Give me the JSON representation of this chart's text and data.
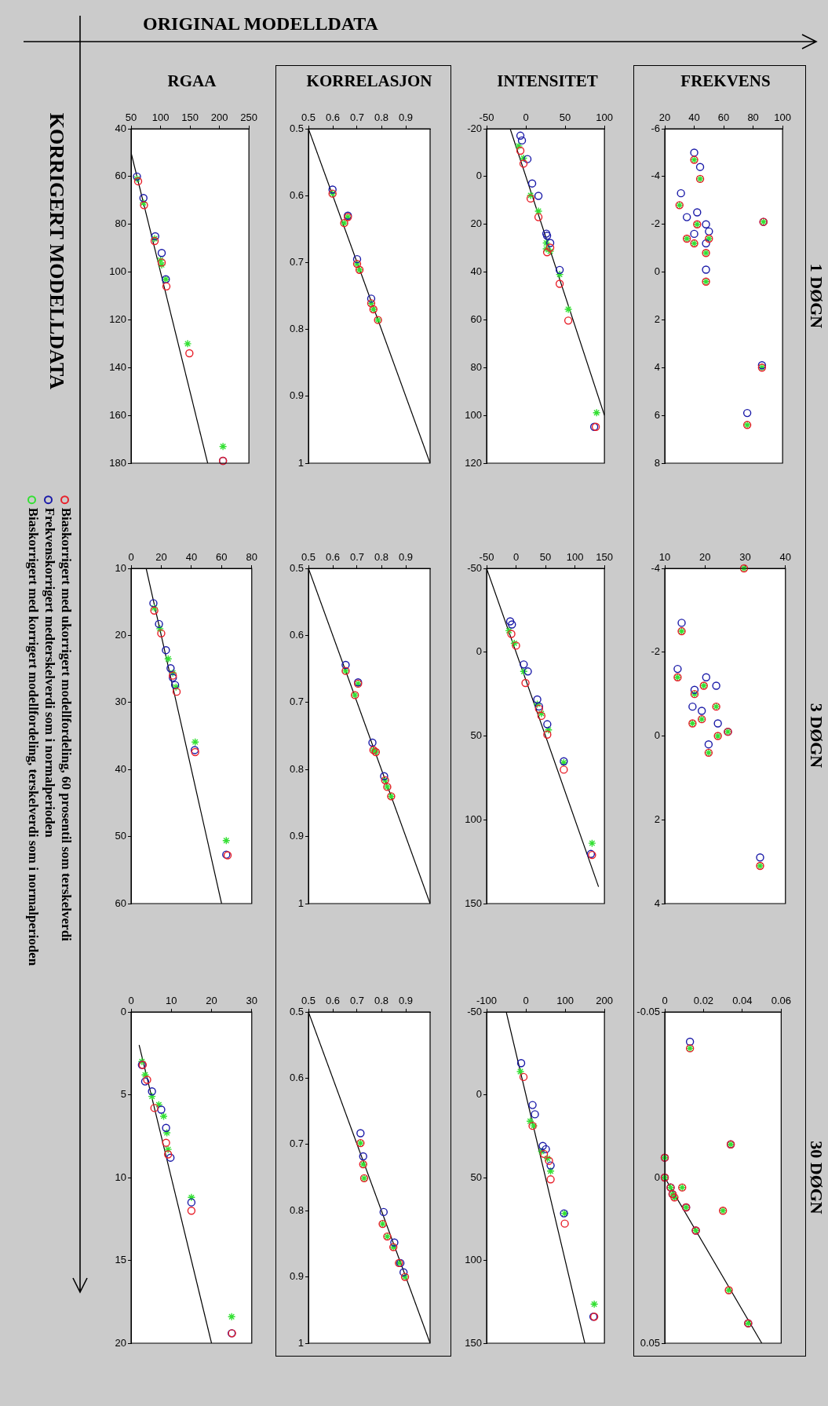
{
  "chart_data": [
    {
      "type": "scatter",
      "xlabel": "RGAA",
      "annotations": [
        "ORIGINAL MODELLDATA",
        "KORRIGERT MODELLDATA"
      ],
      "xlim": [
        50,
        250
      ],
      "ylim": [
        180,
        40
      ],
      "xticks": [
        50,
        100,
        150,
        200,
        250
      ],
      "yticks": [
        40,
        60,
        80,
        100,
        120,
        140,
        160,
        180
      ],
      "series": [
        {
          "color": "#e8202a",
          "marker": "circle",
          "x": [
            62,
            72,
            90,
            102,
            110,
            149,
            206
          ],
          "values": [
            62,
            72,
            87,
            96,
            106,
            134,
            179
          ]
        },
        {
          "color": "#1a1aa8",
          "marker": "circle",
          "x": [
            60,
            71,
            91,
            102,
            109,
            206
          ],
          "values": [
            60,
            69,
            85,
            92,
            103,
            179
          ]
        },
        {
          "color": "#33e033",
          "marker": "cross",
          "x": [
            60,
            71,
            90,
            100,
            102,
            109,
            146,
            206
          ],
          "values": [
            61,
            71,
            86,
            95,
            97,
            103,
            130,
            173
          ]
        },
        {
          "type": "line",
          "color": "#000000",
          "marker": "none",
          "x": [
            50,
            180
          ],
          "values": [
            50,
            180
          ]
        }
      ]
    },
    {
      "type": "scatter",
      "xlabel": "KORRELASJON",
      "xlim": [
        0.5,
        1
      ],
      "ylim": [
        1,
        0.5
      ],
      "xticks": [
        0.5,
        0.6,
        0.7,
        0.8,
        0.9
      ],
      "yticks": [
        0.5,
        0.6,
        0.7,
        0.8,
        0.9,
        1
      ],
      "series": [
        {
          "color": "#e8202a",
          "marker": "circle",
          "x": [
            0.599,
            0.662,
            0.647,
            0.7,
            0.71,
            0.758,
            0.767,
            0.786
          ],
          "values": [
            0.597,
            0.632,
            0.641,
            0.702,
            0.711,
            0.761,
            0.77,
            0.786
          ]
        },
        {
          "color": "#1a1aa8",
          "marker": "circle",
          "x": [
            0.599,
            0.662,
            0.7,
            0.758
          ],
          "values": [
            0.591,
            0.63,
            0.695,
            0.754
          ]
        },
        {
          "color": "#33e033",
          "marker": "cross",
          "x": [
            0.599,
            0.662,
            0.647,
            0.7,
            0.71,
            0.758,
            0.767,
            0.786
          ],
          "values": [
            0.597,
            0.632,
            0.641,
            0.702,
            0.711,
            0.761,
            0.77,
            0.786
          ]
        },
        {
          "type": "line",
          "color": "#000000",
          "marker": "none",
          "x": [
            0.5,
            1
          ],
          "values": [
            0.5,
            1
          ]
        }
      ]
    },
    {
      "type": "scatter",
      "xlabel": "INTENSITET",
      "xlim": [
        -50,
        100
      ],
      "ylim": [
        120,
        -20
      ],
      "xticks": [
        -50,
        0,
        50,
        100
      ],
      "yticks": [
        -20,
        0,
        20,
        40,
        60,
        80,
        100,
        120
      ],
      "series": [
        {
          "color": "#e8202a",
          "marker": "circle",
          "x": [
            -7,
            -3,
            6,
            16,
            31,
            27,
            43,
            54,
            89
          ],
          "values": [
            -10.8,
            -5.4,
            9.2,
            17.0,
            29.8,
            31.7,
            44.9,
            60.3,
            104.8
          ]
        },
        {
          "color": "#1a1aa8",
          "marker": "circle",
          "x": [
            -7,
            -5,
            2,
            8,
            16,
            26,
            27,
            31,
            43,
            87
          ],
          "values": [
            -17.1,
            -15.1,
            -7.3,
            2.9,
            8.1,
            23.9,
            24.8,
            27.8,
            39.1,
            104.8
          ]
        },
        {
          "color": "#33e033",
          "marker": "cross",
          "x": [
            -9,
            -3,
            6,
            16,
            26,
            26,
            31,
            43,
            54,
            90
          ],
          "values": [
            -12.8,
            -7.7,
            7.9,
            14.5,
            27.8,
            30.3,
            31.3,
            41.0,
            55.6,
            98.9
          ]
        },
        {
          "type": "line",
          "color": "#000000",
          "marker": "none",
          "x": [
            -20,
            100
          ],
          "values": [
            -20,
            100
          ]
        }
      ]
    },
    {
      "type": "scatter",
      "annotations": [
        "1 DØGN"
      ],
      "xlabel": "FREKVENS",
      "xlim": [
        20,
        100
      ],
      "ylim": [
        8,
        -6
      ],
      "xticks": [
        20,
        40,
        60,
        80,
        100
      ],
      "yticks": [
        -6,
        -4,
        -2,
        0,
        2,
        4,
        6,
        8
      ],
      "series": [
        {
          "color": "#e8202a",
          "marker": "circle",
          "x": [
            40,
            44,
            30,
            42,
            35,
            40,
            50,
            48,
            48,
            87,
            86,
            76
          ],
          "values": [
            -4.7,
            -3.9,
            -2.8,
            -2.0,
            -1.4,
            -1.2,
            -1.4,
            -0.8,
            0.4,
            -2.1,
            4.0,
            6.4
          ]
        },
        {
          "color": "#1a1aa8",
          "marker": "circle",
          "x": [
            40,
            44,
            31,
            42,
            48,
            35,
            40,
            50,
            48,
            48,
            87,
            86,
            76
          ],
          "values": [
            -5.0,
            -4.4,
            -3.3,
            -2.5,
            -2.0,
            -2.3,
            -1.6,
            -1.7,
            -1.2,
            -0.1,
            -2.1,
            3.9,
            5.9
          ]
        },
        {
          "color": "#33e033",
          "marker": "cross",
          "x": [
            40,
            44,
            30,
            42,
            35,
            40,
            50,
            48,
            48,
            87,
            86,
            76
          ],
          "values": [
            -4.7,
            -3.9,
            -2.8,
            -2.0,
            -1.4,
            -1.2,
            -1.4,
            -0.8,
            0.4,
            -2.1,
            4.0,
            6.4
          ]
        }
      ]
    },
    {
      "type": "scatter",
      "legend": "left",
      "xlim": [
        0,
        80
      ],
      "ylim": [
        60,
        10
      ],
      "xticks": [
        0,
        20,
        40,
        60,
        80
      ],
      "yticks": [
        10,
        20,
        30,
        40,
        50,
        60
      ],
      "series": [
        {
          "name": "Biaskorrigert med ukorrigert modellfordeling, 60 prosentil som terskelverdi",
          "color": "#e8202a",
          "marker": "circle",
          "x": [
            15.4,
            20.0,
            27.7,
            30.2,
            42.5,
            64.0
          ],
          "values": [
            16.3,
            19.7,
            26.0,
            28.4,
            37.4,
            52.8
          ]
        },
        {
          "name": "Frekvenskorrigert medterskelverdi som i normalperioden",
          "color": "#1a1aa8",
          "marker": "circle",
          "x": [
            14.8,
            18.5,
            23.1,
            26.2,
            27.7,
            29.2,
            42.2,
            63.1
          ],
          "values": [
            15.2,
            18.3,
            22.2,
            24.9,
            26.3,
            27.4,
            37.1,
            52.7
          ]
        },
        {
          "name": "Biaskorrigert med korrigert modellfordeling, terskelverdi som i normalperioden",
          "color": "#33e033",
          "marker": "cross",
          "x": [
            15.4,
            19.1,
            24.6,
            27.7,
            29.8,
            42.5,
            63.1
          ],
          "values": [
            15.9,
            19.0,
            23.5,
            25.6,
            27.7,
            35.9,
            50.6
          ]
        },
        {
          "type": "line",
          "color": "#000000",
          "marker": "none",
          "x": [
            10,
            60
          ],
          "values": [
            10,
            60
          ]
        }
      ]
    },
    {
      "type": "scatter",
      "xlim": [
        0.5,
        1
      ],
      "ylim": [
        1,
        0.5
      ],
      "xticks": [
        0.5,
        0.6,
        0.7,
        0.8,
        0.9
      ],
      "yticks": [
        0.5,
        0.6,
        0.7,
        0.8,
        0.9,
        1
      ],
      "series": [
        {
          "color": "#e8202a",
          "marker": "circle",
          "x": [
            0.653,
            0.704,
            0.691,
            0.767,
            0.777,
            0.815,
            0.824,
            0.84
          ],
          "values": [
            0.653,
            0.672,
            0.689,
            0.771,
            0.774,
            0.816,
            0.826,
            0.84
          ]
        },
        {
          "color": "#1a1aa8",
          "marker": "circle",
          "x": [
            0.653,
            0.704,
            0.763,
            0.811
          ],
          "values": [
            0.644,
            0.67,
            0.76,
            0.81
          ]
        },
        {
          "color": "#33e033",
          "marker": "cross",
          "x": [
            0.653,
            0.704,
            0.691,
            0.767,
            0.777,
            0.815,
            0.824,
            0.84
          ],
          "values": [
            0.653,
            0.672,
            0.689,
            0.771,
            0.774,
            0.816,
            0.826,
            0.84
          ]
        },
        {
          "type": "line",
          "color": "#000000",
          "marker": "none",
          "x": [
            0.5,
            1
          ],
          "values": [
            0.5,
            1
          ]
        }
      ]
    },
    {
      "type": "scatter",
      "xlim": [
        -50,
        150
      ],
      "ylim": [
        150,
        -50
      ],
      "xticks": [
        -50,
        0,
        50,
        100,
        150
      ],
      "yticks": [
        -50,
        0,
        50,
        100,
        150
      ],
      "series": [
        {
          "color": "#e8202a",
          "marker": "circle",
          "x": [
            -8,
            0,
            16,
            39,
            43,
            53,
            81,
            129
          ],
          "values": [
            -10.9,
            -3.9,
            18.4,
            33.8,
            38.0,
            49.2,
            70.1,
            121.0
          ]
        },
        {
          "color": "#1a1aa8",
          "marker": "circle",
          "x": [
            -10,
            -7,
            13,
            20,
            36,
            39,
            53,
            81,
            127
          ],
          "values": [
            -18.4,
            -16.5,
            7.3,
            11.5,
            28.2,
            32.4,
            43.0,
            65.1,
            120.4
          ]
        },
        {
          "color": "#33e033",
          "marker": "cross",
          "x": [
            -12,
            -3,
            13,
            36,
            43,
            55,
            81,
            129
          ],
          "values": [
            -12.8,
            -5.3,
            11.5,
            31.0,
            36.6,
            46.4,
            65.9,
            114.0
          ]
        },
        {
          "type": "line",
          "color": "#000000",
          "marker": "none",
          "x": [
            -50,
            140
          ],
          "values": [
            -50,
            140
          ]
        }
      ]
    },
    {
      "type": "scatter",
      "annotations": [
        "3 DØGN"
      ],
      "xlim": [
        10,
        40
      ],
      "ylim": [
        4,
        -4
      ],
      "xticks": [
        10,
        20,
        30,
        40
      ],
      "yticks": [
        -4,
        -2,
        0,
        2,
        4
      ],
      "series": [
        {
          "color": "#e8202a",
          "marker": "circle",
          "x": [
            29.7,
            14.2,
            13.2,
            19.7,
            17.4,
            22.8,
            16.9,
            19.2,
            23.2,
            25.7,
            20.9,
            33.7
          ],
          "values": [
            -4.0,
            -2.5,
            -1.4,
            -1.2,
            -1.0,
            -0.7,
            -0.3,
            -0.4,
            0.0,
            -0.1,
            0.4,
            3.1
          ]
        },
        {
          "color": "#1a1aa8",
          "marker": "circle",
          "x": [
            14.2,
            13.2,
            20.3,
            17.4,
            22.8,
            16.9,
            19.2,
            23.2,
            25.7,
            20.9,
            33.7
          ],
          "values": [
            -2.7,
            -1.6,
            -1.4,
            -1.1,
            -1.2,
            -0.7,
            -0.6,
            -0.3,
            -0.1,
            0.2,
            2.9
          ]
        },
        {
          "color": "#33e033",
          "marker": "cross",
          "x": [
            29.7,
            14.2,
            13.2,
            19.7,
            17.4,
            22.8,
            16.9,
            19.2,
            23.2,
            25.7,
            20.9,
            33.7
          ],
          "values": [
            -4.0,
            -2.5,
            -1.4,
            -1.2,
            -1.0,
            -0.7,
            -0.3,
            -0.4,
            0.0,
            -0.1,
            0.4,
            3.1
          ]
        }
      ]
    },
    {
      "type": "scatter",
      "xlim": [
        0,
        30
      ],
      "ylim": [
        20,
        0
      ],
      "xticks": [
        0,
        10,
        20,
        30
      ],
      "yticks": [
        0,
        5,
        10,
        15,
        20
      ],
      "series": [
        {
          "color": "#e8202a",
          "marker": "circle",
          "x": [
            2.9,
            4.0,
            5.8,
            8.7,
            9.2,
            15.0,
            25.1
          ],
          "values": [
            3.2,
            4.1,
            5.8,
            7.9,
            8.6,
            12.0,
            19.4
          ]
        },
        {
          "color": "#1a1aa8",
          "marker": "circle",
          "x": [
            2.7,
            3.5,
            5.2,
            7.5,
            8.7,
            9.8,
            15.0,
            25.0
          ],
          "values": [
            3.2,
            4.2,
            4.8,
            5.9,
            7.0,
            8.8,
            11.5,
            19.4
          ]
        },
        {
          "color": "#33e033",
          "marker": "cross",
          "x": [
            2.7,
            3.5,
            5.2,
            6.9,
            8.1,
            8.9,
            9.2,
            15.0,
            25.0
          ],
          "values": [
            3.0,
            3.8,
            5.1,
            5.6,
            6.3,
            7.3,
            8.3,
            11.2,
            18.4
          ]
        },
        {
          "type": "line",
          "color": "#000000",
          "marker": "none",
          "x": [
            2,
            20
          ],
          "values": [
            2,
            20
          ]
        }
      ]
    },
    {
      "type": "scatter",
      "xlim": [
        0.5,
        1
      ],
      "ylim": [
        1,
        0.5
      ],
      "xticks": [
        0.5,
        0.6,
        0.7,
        0.8,
        0.9
      ],
      "yticks": [
        0.5,
        0.6,
        0.7,
        0.8,
        0.9,
        1
      ],
      "series": [
        {
          "color": "#e8202a",
          "marker": "circle",
          "x": [
            0.714,
            0.725,
            0.729,
            0.805,
            0.824,
            0.849,
            0.872,
            0.897
          ],
          "values": [
            0.698,
            0.73,
            0.751,
            0.82,
            0.839,
            0.855,
            0.879,
            0.9
          ]
        },
        {
          "color": "#1a1aa8",
          "marker": "circle",
          "x": [
            0.714,
            0.725,
            0.809,
            0.853,
            0.878,
            0.891
          ],
          "values": [
            0.683,
            0.718,
            0.802,
            0.848,
            0.879,
            0.893
          ]
        },
        {
          "color": "#33e033",
          "marker": "cross",
          "x": [
            0.714,
            0.725,
            0.729,
            0.805,
            0.824,
            0.849,
            0.872,
            0.897
          ],
          "values": [
            0.698,
            0.73,
            0.751,
            0.82,
            0.839,
            0.855,
            0.879,
            0.9
          ]
        },
        {
          "type": "line",
          "color": "#000000",
          "marker": "none",
          "x": [
            0.5,
            1
          ],
          "values": [
            0.5,
            1
          ]
        }
      ]
    },
    {
      "type": "scatter",
      "xlim": [
        -100,
        200
      ],
      "ylim": [
        150,
        -50
      ],
      "xticks": [
        -100,
        0,
        100,
        200
      ],
      "yticks": [
        -50,
        0,
        50,
        100,
        150
      ],
      "series": [
        {
          "color": "#e8202a",
          "marker": "circle",
          "x": [
            -6,
            17,
            46,
            59,
            63,
            99,
            174
          ],
          "values": [
            -10.7,
            18.8,
            35.7,
            39.9,
            51.1,
            77.8,
            134.0
          ]
        },
        {
          "color": "#1a1aa8",
          "marker": "circle",
          "x": [
            -12,
            17,
            23,
            43,
            51,
            63,
            97,
            172
          ],
          "values": [
            -19.1,
            6.2,
            11.8,
            30.9,
            32.9,
            42.7,
            71.6,
            134.0
          ]
        },
        {
          "color": "#33e033",
          "marker": "cross",
          "x": [
            -14,
            11,
            20,
            40,
            55,
            63,
            99,
            174
          ],
          "values": [
            -14.0,
            16.0,
            18.8,
            34.3,
            38.5,
            46.1,
            71.6,
            126.4
          ]
        },
        {
          "type": "line",
          "color": "#000000",
          "marker": "none",
          "x": [
            -50,
            150
          ],
          "values": [
            -50,
            150
          ]
        }
      ]
    },
    {
      "type": "scatter",
      "annotations": [
        "30 DØGN"
      ],
      "xlim": [
        0,
        0.06
      ],
      "ylim": [
        0.05,
        -0.05
      ],
      "xticks": [
        0,
        0.02,
        0.04,
        0.06
      ],
      "yticks": [
        -0.05,
        0,
        0.05
      ],
      "series": [
        {
          "color": "#e8202a",
          "marker": "circle",
          "x": [
            0.013,
            0.034,
            0.0,
            0.0,
            0.003,
            0.009,
            0.004,
            0.005,
            0.011,
            0.03,
            0.016,
            0.033,
            0.043
          ],
          "values": [
            -0.039,
            -0.01,
            -0.006,
            0.0,
            0.003,
            0.003,
            0.005,
            0.006,
            0.009,
            0.01,
            0.016,
            0.034,
            0.044
          ]
        },
        {
          "color": "#1a1aa8",
          "marker": "circle",
          "x": [
            0.013,
            0.034,
            0.0,
            0.0,
            0.003,
            0.004,
            0.011,
            0.016,
            0.043
          ],
          "values": [
            -0.041,
            -0.01,
            -0.006,
            0.0,
            0.003,
            0.005,
            0.009,
            0.016,
            0.044
          ]
        },
        {
          "color": "#33e033",
          "marker": "cross",
          "x": [
            0.013,
            0.034,
            0.0,
            0.0,
            0.003,
            0.009,
            0.004,
            0.005,
            0.011,
            0.03,
            0.016,
            0.033,
            0.043
          ],
          "values": [
            -0.039,
            -0.01,
            -0.006,
            0.0,
            0.003,
            0.003,
            0.005,
            0.006,
            0.009,
            0.01,
            0.016,
            0.034,
            0.044
          ]
        },
        {
          "type": "line",
          "color": "#000000",
          "marker": "none",
          "x": [
            0,
            0.05
          ],
          "values": [
            0,
            0.05
          ]
        }
      ]
    }
  ]
}
